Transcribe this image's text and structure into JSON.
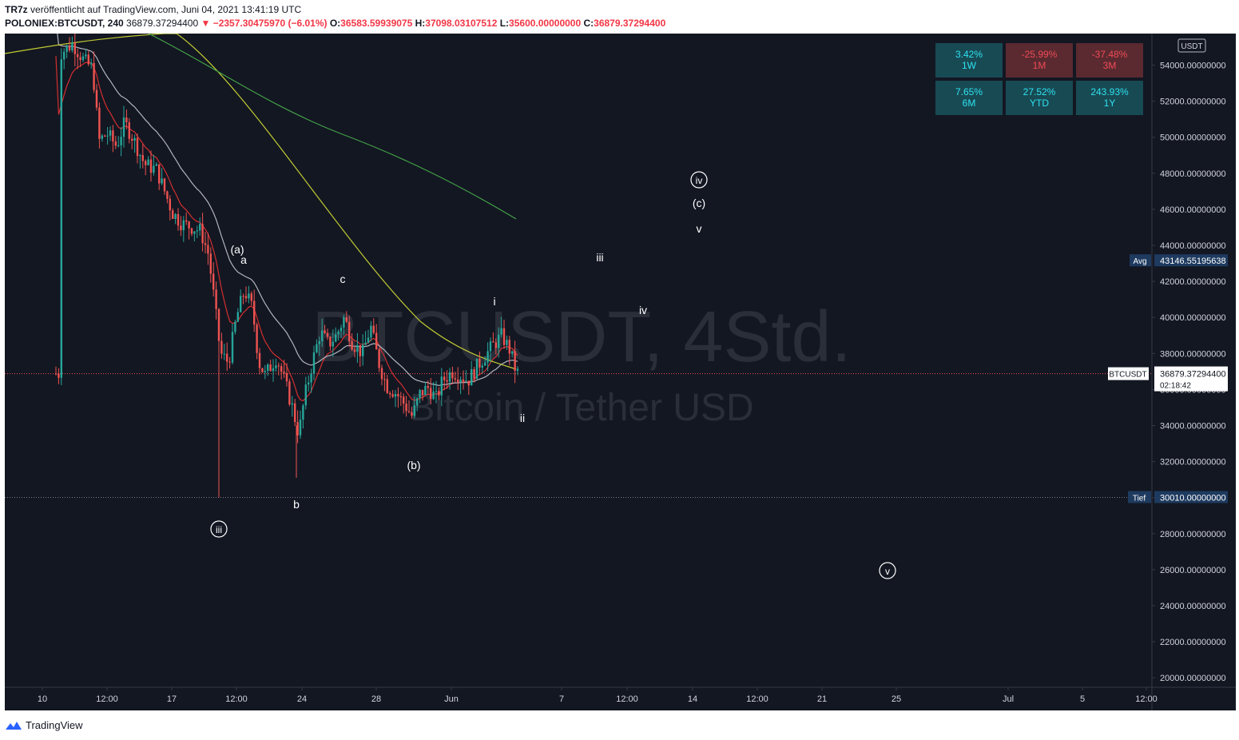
{
  "header": {
    "line1_author": "TR7z",
    "line1_rest": "veröffentlicht auf TradingView.com, Juni 04, 2021 13:41:19 UTC",
    "symbol": "POLONIEX:BTCUSDT, 240",
    "last": "36879.37294400",
    "change": "▼ −2357.30475970 (−6.01%)",
    "o_label": "O:",
    "o_value": "36583.59939075",
    "h_label": "H:",
    "h_value": "37098.03107512",
    "l_label": "L:",
    "l_value": "35600.00000000",
    "c_label": "C:",
    "c_value": "36879.37294400"
  },
  "watermark": {
    "line1": "BTCUSDT, 4Std.",
    "line2": "Bitcoin / Tether USD"
  },
  "performance": [
    {
      "value": "3.42%",
      "period": "1W",
      "sign": "pos"
    },
    {
      "value": "-25.99%",
      "period": "1M",
      "sign": "neg"
    },
    {
      "value": "-37.48%",
      "period": "3M",
      "sign": "neg"
    },
    {
      "value": "7.65%",
      "period": "6M",
      "sign": "pos"
    },
    {
      "value": "27.52%",
      "period": "YTD",
      "sign": "pos"
    },
    {
      "value": "243.93%",
      "period": "1Y",
      "sign": "pos"
    }
  ],
  "footer": {
    "brand": "TradingView"
  },
  "colors": {
    "bg": "#131722",
    "up": "#26a69a",
    "wave": "#ffffff",
    "ema_red": "#d32f2f",
    "ema_gray": "#b2b5be",
    "ema_yellow": "#c0ca33",
    "ema_green": "#43a047"
  },
  "chart_data": {
    "type": "candlestick",
    "currency": "USDT",
    "ylim": [
      19200,
      55600
    ],
    "y_ticks": [
      "54000.00000000",
      "52000.00000000",
      "50000.00000000",
      "48000.00000000",
      "46000.00000000",
      "44000.00000000",
      "42000.00000000",
      "40000.00000000",
      "38000.00000000",
      "36000.00000000",
      "34000.00000000",
      "32000.00000000",
      "30000.00000000",
      "28000.00000000",
      "26000.00000000",
      "24000.00000000",
      "22000.00000000",
      "20000.00000000"
    ],
    "x_ticks": [
      "10",
      "12:00",
      "17",
      "12:00",
      "24",
      "28",
      "Jun",
      "7",
      "12:00",
      "14",
      "12:00",
      "21",
      "25",
      "Jul",
      "5",
      "12:00"
    ],
    "price_line": {
      "label": "BTCUSDT",
      "value": "36879.37294400",
      "countdown": "02:18:42",
      "y": 36879.37
    },
    "avg_line": {
      "label": "Avg",
      "value": "43146.55195638",
      "y": 43146.55
    },
    "low_line": {
      "label": "Tief",
      "value": "30010.00000000",
      "y": 30010
    },
    "wave_labels": [
      {
        "text": "iii",
        "circled": true
      },
      {
        "text": "(a)",
        "circled": false
      },
      {
        "text": "a",
        "circled": false
      },
      {
        "text": "b",
        "circled": false
      },
      {
        "text": "c",
        "circled": false
      },
      {
        "text": "(b)",
        "circled": false
      },
      {
        "text": "i",
        "circled": false
      },
      {
        "text": "ii",
        "circled": false
      },
      {
        "text": "iii",
        "circled": false
      },
      {
        "text": "iv",
        "circled": false
      },
      {
        "text": "v",
        "circled": false
      },
      {
        "text": "(c)",
        "circled": false
      },
      {
        "text": "iv",
        "circled": true
      },
      {
        "text": "v",
        "circled": true
      }
    ]
  }
}
